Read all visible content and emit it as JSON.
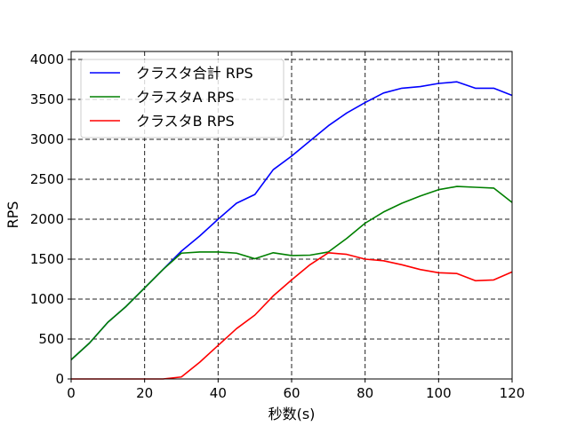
{
  "chart_data": {
    "type": "line",
    "title": "",
    "xlabel": "秒数(s)",
    "ylabel": "RPS",
    "xlim": [
      0,
      120
    ],
    "ylim": [
      0,
      4100
    ],
    "xticks": [
      0,
      20,
      40,
      60,
      80,
      100,
      120
    ],
    "yticks": [
      0,
      500,
      1000,
      1500,
      2000,
      2500,
      3000,
      3500,
      4000
    ],
    "grid": true,
    "legend_position": "top-left",
    "x": [
      0,
      5,
      10,
      15,
      20,
      25,
      30,
      35,
      40,
      45,
      50,
      55,
      60,
      65,
      70,
      75,
      80,
      85,
      90,
      95,
      100,
      105,
      110,
      115,
      120
    ],
    "series": [
      {
        "name": "クラスタ合計 RPS",
        "color": "#0000ff",
        "values": [
          240,
          450,
          710,
          910,
          1140,
          1370,
          1600,
          1790,
          2000,
          2200,
          2310,
          2620,
          2790,
          2980,
          3170,
          3330,
          3460,
          3580,
          3640,
          3660,
          3700,
          3720,
          3640,
          3640,
          3550
        ]
      },
      {
        "name": "クラスタA RPS",
        "color": "#008000",
        "values": [
          240,
          450,
          710,
          910,
          1140,
          1370,
          1575,
          1590,
          1590,
          1575,
          1505,
          1580,
          1545,
          1550,
          1590,
          1760,
          1950,
          2090,
          2200,
          2290,
          2370,
          2410,
          2400,
          2390,
          2210
        ]
      },
      {
        "name": "クラスタB RPS",
        "color": "#ff0000",
        "values": [
          0,
          0,
          0,
          0,
          0,
          0,
          25,
          210,
          420,
          630,
          800,
          1040,
          1240,
          1430,
          1580,
          1560,
          1500,
          1480,
          1430,
          1370,
          1330,
          1320,
          1230,
          1240,
          1340
        ]
      }
    ]
  }
}
